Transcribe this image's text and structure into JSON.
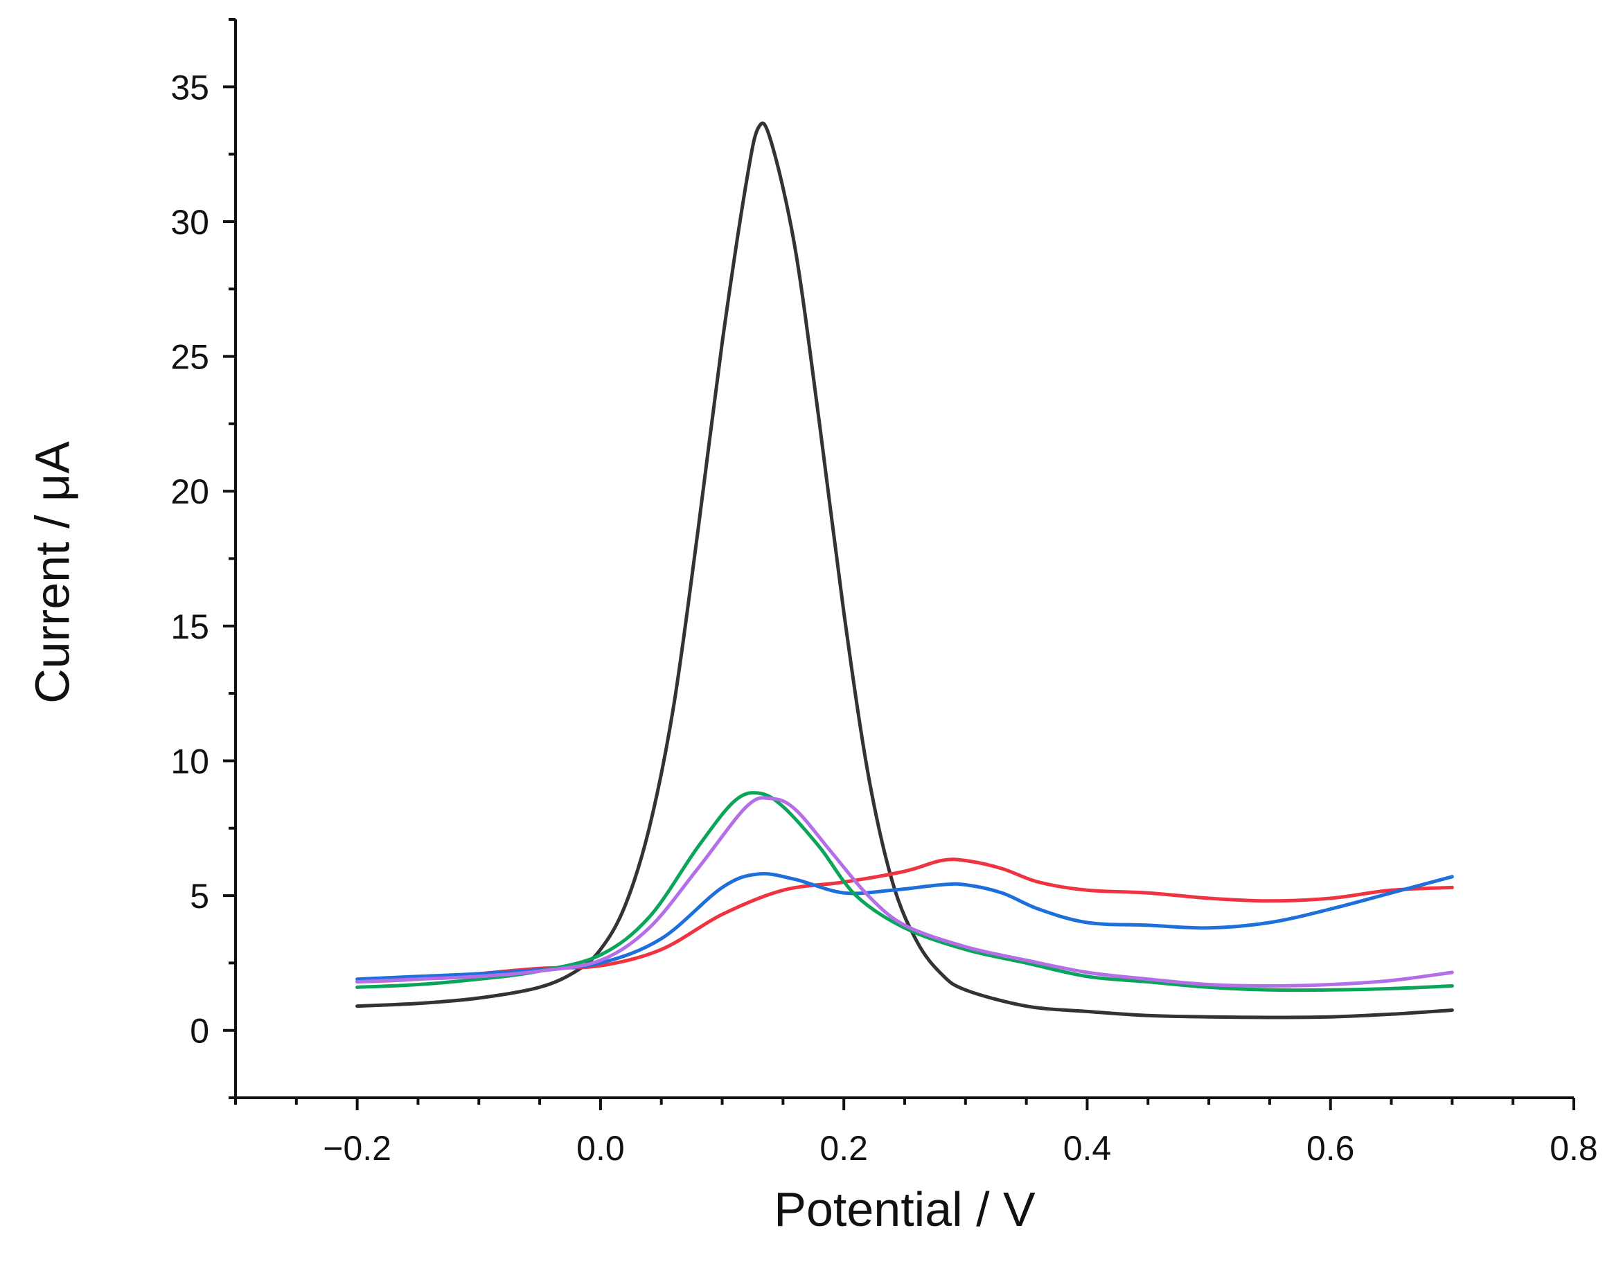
{
  "chart_data": {
    "type": "line",
    "title": "",
    "xlabel": "Potential / V",
    "ylabel": "Current / μA",
    "xlim": [
      -0.3,
      0.8
    ],
    "ylim": [
      -2.5,
      37.5
    ],
    "xticks": [
      -0.2,
      0.0,
      0.2,
      0.4,
      0.6,
      0.8
    ],
    "xtick_labels": [
      "−0.2",
      "0.0",
      "0.2",
      "0.4",
      "0.6",
      "0.8"
    ],
    "yticks": [
      0,
      5,
      10,
      15,
      20,
      25,
      30,
      35
    ],
    "ytick_labels": [
      "0",
      "5",
      "10",
      "15",
      "20",
      "25",
      "30",
      "35"
    ],
    "grid": false,
    "legend": "none",
    "series": [
      {
        "name": "black",
        "color": "#333333",
        "x": [
          -0.2,
          -0.15,
          -0.1,
          -0.05,
          -0.02,
          0.0,
          0.02,
          0.04,
          0.06,
          0.08,
          0.1,
          0.12,
          0.13,
          0.14,
          0.16,
          0.18,
          0.2,
          0.22,
          0.24,
          0.26,
          0.28,
          0.3,
          0.35,
          0.4,
          0.45,
          0.5,
          0.55,
          0.6,
          0.65,
          0.7
        ],
        "y": [
          0.9,
          1.0,
          1.2,
          1.6,
          2.2,
          3.0,
          4.6,
          7.5,
          12.0,
          18.5,
          25.5,
          31.5,
          33.5,
          33.0,
          29.0,
          22.5,
          15.5,
          9.5,
          5.5,
          3.3,
          2.1,
          1.5,
          0.9,
          0.7,
          0.55,
          0.5,
          0.48,
          0.5,
          0.6,
          0.75
        ]
      },
      {
        "name": "red",
        "color": "#ef3340",
        "x": [
          -0.2,
          -0.15,
          -0.1,
          -0.05,
          0.0,
          0.05,
          0.1,
          0.15,
          0.2,
          0.25,
          0.28,
          0.3,
          0.33,
          0.36,
          0.4,
          0.45,
          0.5,
          0.55,
          0.6,
          0.65,
          0.7
        ],
        "y": [
          1.8,
          1.9,
          2.1,
          2.3,
          2.4,
          3.0,
          4.3,
          5.2,
          5.5,
          5.9,
          6.3,
          6.3,
          6.0,
          5.5,
          5.2,
          5.1,
          4.9,
          4.8,
          4.9,
          5.2,
          5.3
        ]
      },
      {
        "name": "blue",
        "color": "#1d6fdc",
        "x": [
          -0.2,
          -0.15,
          -0.1,
          -0.05,
          0.0,
          0.05,
          0.1,
          0.13,
          0.16,
          0.2,
          0.24,
          0.28,
          0.3,
          0.33,
          0.36,
          0.4,
          0.45,
          0.5,
          0.55,
          0.6,
          0.65,
          0.7
        ],
        "y": [
          1.9,
          2.0,
          2.1,
          2.25,
          2.5,
          3.4,
          5.3,
          5.8,
          5.6,
          5.1,
          5.2,
          5.4,
          5.4,
          5.1,
          4.5,
          4.0,
          3.9,
          3.8,
          4.0,
          4.5,
          5.1,
          5.7
        ]
      },
      {
        "name": "green",
        "color": "#0aa55a",
        "x": [
          -0.2,
          -0.15,
          -0.1,
          -0.05,
          0.0,
          0.04,
          0.08,
          0.11,
          0.13,
          0.15,
          0.18,
          0.21,
          0.25,
          0.3,
          0.35,
          0.4,
          0.45,
          0.5,
          0.55,
          0.6,
          0.65,
          0.7
        ],
        "y": [
          1.6,
          1.7,
          1.9,
          2.2,
          2.8,
          4.2,
          6.8,
          8.5,
          8.8,
          8.3,
          6.8,
          5.0,
          3.8,
          3.0,
          2.5,
          2.0,
          1.8,
          1.6,
          1.5,
          1.5,
          1.55,
          1.65
        ]
      },
      {
        "name": "purple",
        "color": "#b46fe8",
        "x": [
          -0.2,
          -0.15,
          -0.1,
          -0.05,
          0.0,
          0.04,
          0.08,
          0.12,
          0.14,
          0.16,
          0.19,
          0.22,
          0.25,
          0.3,
          0.35,
          0.4,
          0.45,
          0.5,
          0.55,
          0.6,
          0.65,
          0.7
        ],
        "y": [
          1.8,
          1.9,
          2.0,
          2.2,
          2.6,
          3.8,
          6.0,
          8.3,
          8.6,
          8.2,
          6.6,
          5.0,
          3.9,
          3.1,
          2.6,
          2.15,
          1.9,
          1.7,
          1.65,
          1.7,
          1.85,
          2.15
        ]
      }
    ]
  }
}
